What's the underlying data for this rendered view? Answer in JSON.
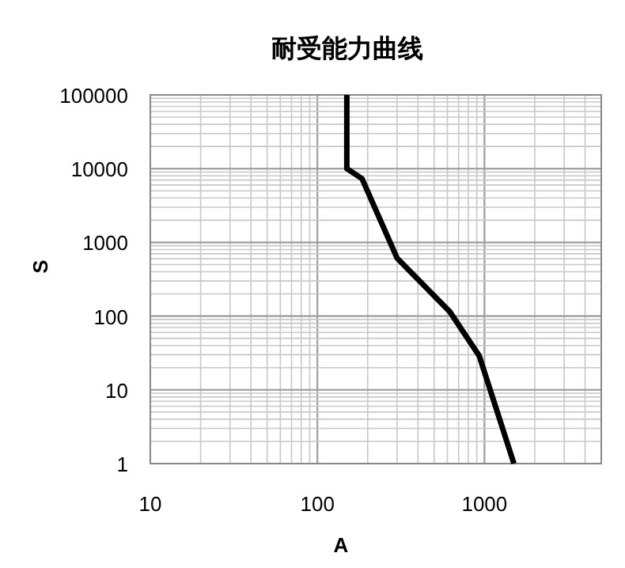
{
  "chart_data": {
    "type": "line",
    "title": "耐受能力曲线",
    "xlabel": "A",
    "ylabel": "S",
    "log": "xy",
    "xlim": [
      10,
      5000
    ],
    "ylim": [
      1,
      100000
    ],
    "xticks": [
      10,
      100,
      1000
    ],
    "yticks": [
      1,
      10,
      100,
      1000,
      10000,
      100000
    ],
    "grid": true,
    "marker": "none",
    "line_style": "solid",
    "series": [
      {
        "color": "#000000",
        "x": [
          150,
          150,
          185,
          300,
          620,
          930,
          1500
        ],
        "values": [
          100000,
          10000,
          7300,
          610,
          115,
          29,
          1
        ]
      }
    ]
  }
}
